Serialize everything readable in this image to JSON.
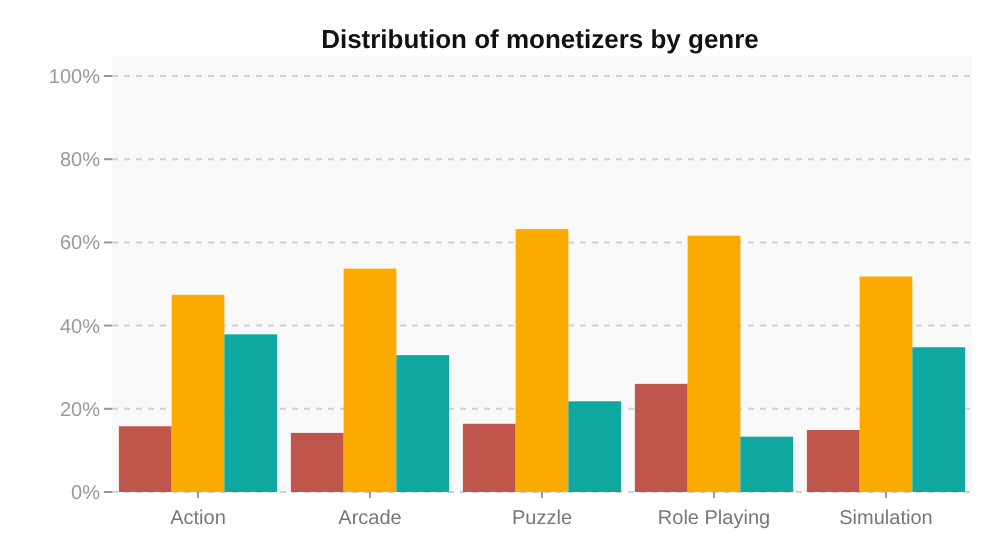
{
  "chart_data": {
    "type": "bar",
    "title": "Distribution of monetizers by genre",
    "categories": [
      "Action",
      "Arcade",
      "Puzzle",
      "Role Playing",
      "Simulation"
    ],
    "series": [
      {
        "color": "#c0564b",
        "values": [
          15.8,
          14.2,
          16.4,
          26,
          14.9
        ]
      },
      {
        "color": "#fbaa00",
        "values": [
          47.4,
          53.7,
          63.2,
          61.6,
          51.8
        ]
      },
      {
        "color": "#0ea8a0",
        "values": [
          37.9,
          32.9,
          21.8,
          13.3,
          34.8
        ]
      }
    ],
    "ylim": [
      0,
      100
    ],
    "yticks": [
      {
        "value": 0,
        "label": "0%"
      },
      {
        "value": 20,
        "label": "20%"
      },
      {
        "value": 40,
        "label": "40%"
      },
      {
        "value": 60,
        "label": "60%"
      },
      {
        "value": 80,
        "label": "80%"
      },
      {
        "value": 100,
        "label": "100%"
      }
    ],
    "grid": "y"
  }
}
